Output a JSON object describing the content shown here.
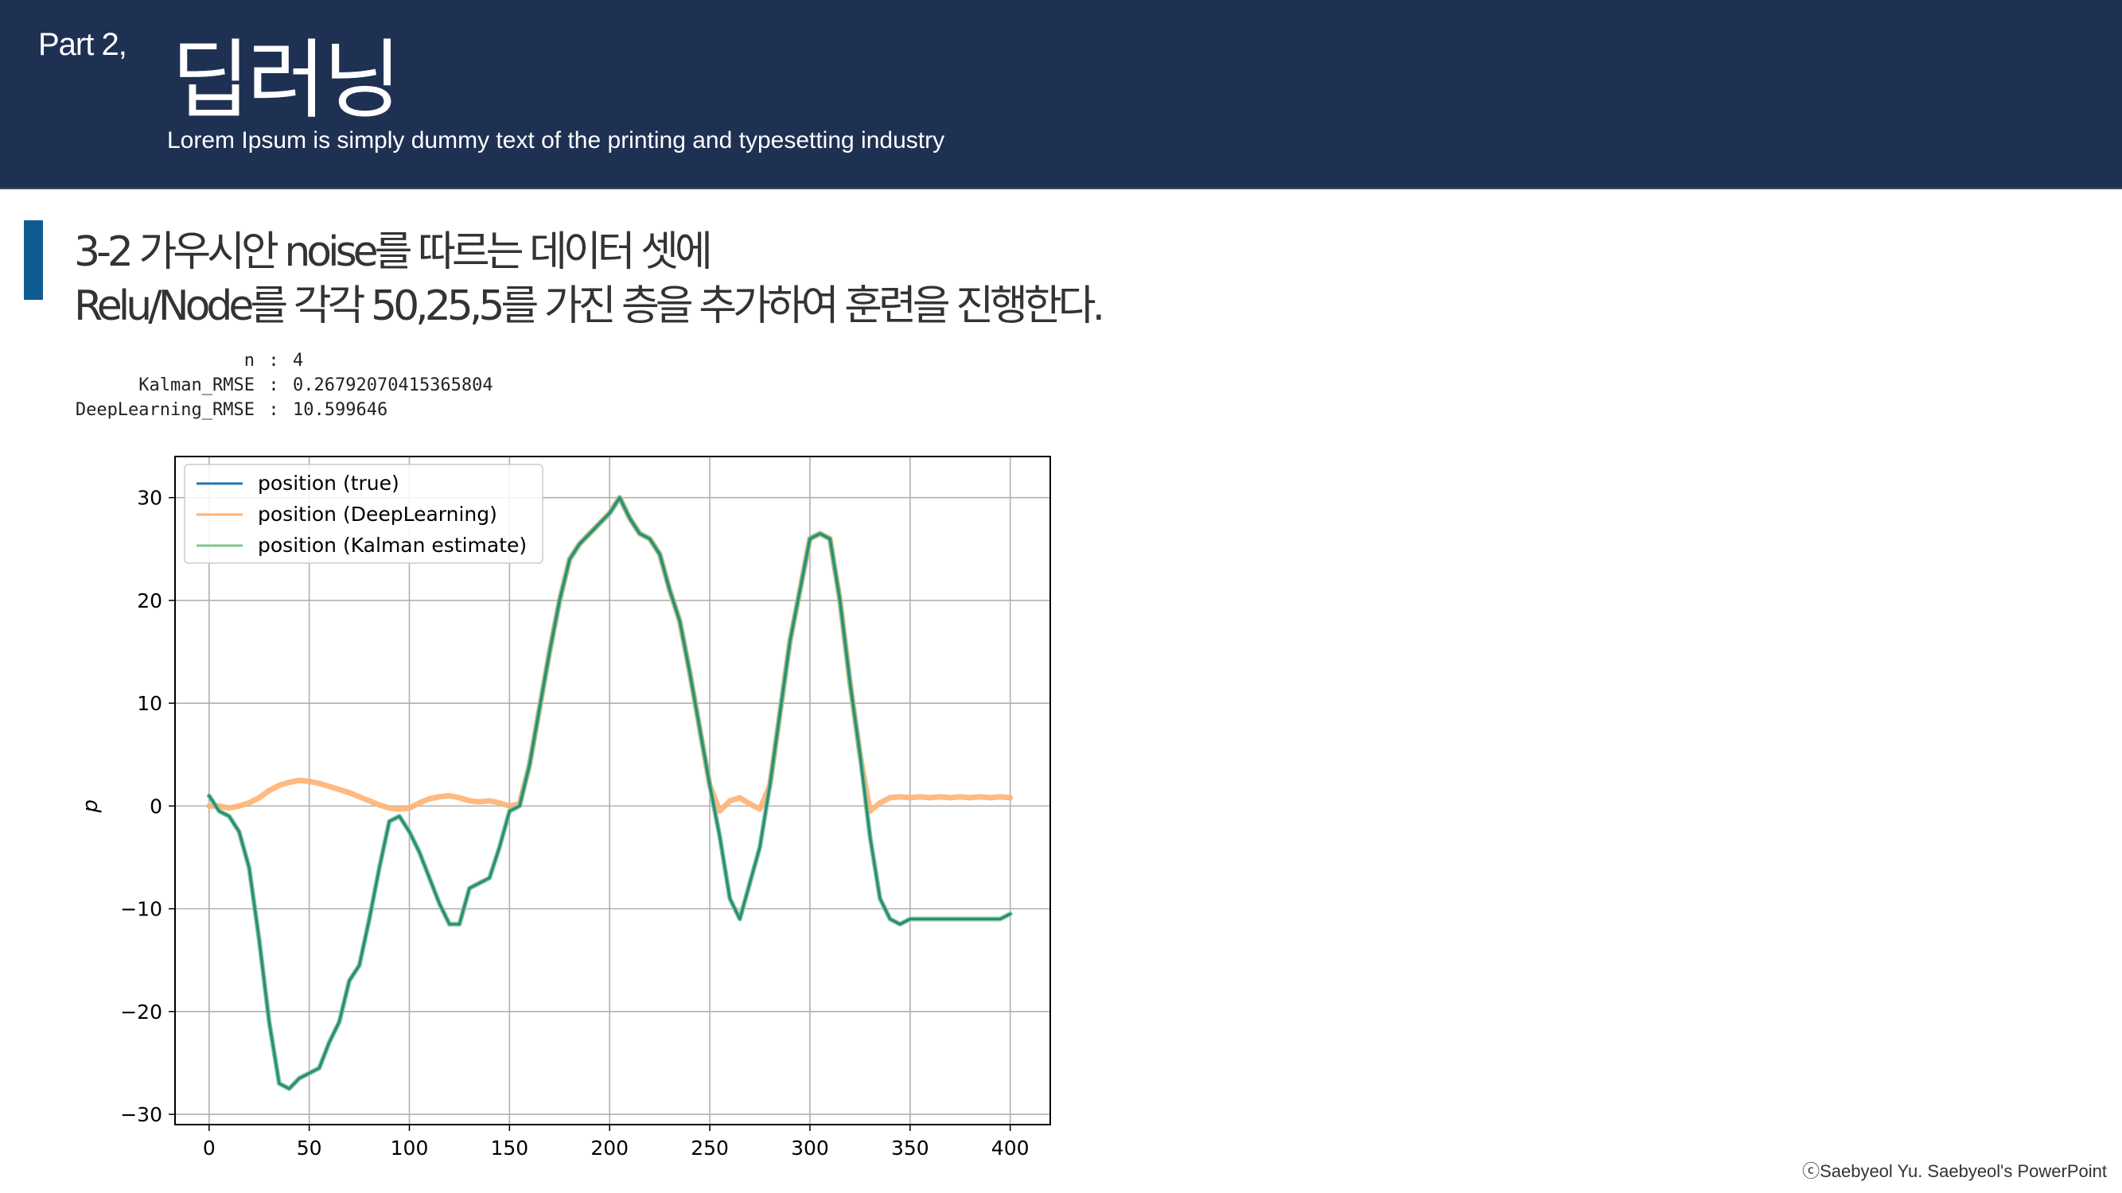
{
  "header": {
    "part_label": "Part 2,",
    "title": "딥러닝",
    "subtitle": "Lorem Ipsum is simply dummy text of the printing and typesetting industry"
  },
  "heading": {
    "line1": "3-2 가우시안 noise를 따르는 데이터 셋에",
    "line2": "Relu/Node를 각각 50,25,5를 가진 층을 추가하여 훈련을 진행한다."
  },
  "console": [
    {
      "label": "n",
      "value": "4"
    },
    {
      "label": "Kalman_RMSE",
      "value": "0.26792070415365804"
    },
    {
      "label": "DeepLearning_RMSE",
      "value": "10.599646"
    }
  ],
  "colors": {
    "header_bg": "#1f3153",
    "accent": "#0f5c93",
    "true": "#1f77b4",
    "deep": "#ffb273",
    "kalman": "#7cc48a",
    "kalman_line": "#2a8c7a"
  },
  "chart_data": {
    "type": "line",
    "title": "",
    "xlabel": "",
    "ylabel": "p",
    "xlim": [
      -17,
      420
    ],
    "ylim": [
      -31,
      34
    ],
    "xticks": [
      0,
      50,
      100,
      150,
      200,
      250,
      300,
      350,
      400
    ],
    "yticks": [
      30,
      20,
      10,
      0,
      -10,
      -20,
      -30
    ],
    "xtick_labels": [
      "0",
      "50",
      "100",
      "150",
      "200",
      "250",
      "300",
      "350",
      "400"
    ],
    "ytick_labels": [
      "30",
      "20",
      "10",
      "0",
      "−10",
      "−20",
      "−30"
    ],
    "grid": true,
    "legend_position": "top-left",
    "series": [
      {
        "name": "position (true)",
        "color": "#1f77b4",
        "x": [
          0,
          5,
          10,
          15,
          20,
          25,
          30,
          35,
          40,
          45,
          50,
          55,
          60,
          65,
          70,
          75,
          80,
          85,
          90,
          95,
          100,
          105,
          110,
          115,
          120,
          125,
          130,
          135,
          140,
          145,
          150,
          155,
          160,
          165,
          170,
          175,
          180,
          185,
          190,
          195,
          200,
          205,
          210,
          215,
          220,
          225,
          230,
          235,
          240,
          245,
          250,
          255,
          260,
          265,
          270,
          275,
          280,
          285,
          290,
          295,
          300,
          305,
          310,
          315,
          320,
          325,
          330,
          335,
          340,
          345,
          350,
          355,
          360,
          365,
          370,
          375,
          380,
          385,
          390,
          395,
          400
        ],
        "y": [
          1,
          -0.5,
          -1,
          -2.5,
          -6,
          -13,
          -21,
          -27,
          -27.5,
          -26.5,
          -26,
          -25.5,
          -23,
          -21,
          -17,
          -15.5,
          -11,
          -6,
          -1.5,
          -1,
          -2.5,
          -4.5,
          -7,
          -9.5,
          -11.5,
          -11.5,
          -8,
          -7.5,
          -7,
          -4,
          -0.5,
          0,
          4,
          9.5,
          15,
          20,
          24,
          25.5,
          26.5,
          27.5,
          28.5,
          30,
          28,
          26.5,
          26,
          24.5,
          21,
          18,
          13,
          7.5,
          2,
          -3,
          -9,
          -11,
          -7.5,
          -4,
          2,
          9,
          16,
          21,
          26,
          26.5,
          26,
          20,
          12,
          5,
          -3,
          -9,
          -11,
          -11.5,
          -11,
          -11,
          -11,
          -11,
          -11,
          -11,
          -11,
          -11,
          -11,
          -11,
          -10.5
        ]
      },
      {
        "name": "position (DeepLearning)",
        "color": "#ffb273",
        "x": [
          0,
          5,
          10,
          15,
          20,
          25,
          30,
          35,
          40,
          45,
          50,
          55,
          60,
          65,
          70,
          75,
          80,
          85,
          90,
          95,
          100,
          105,
          110,
          115,
          120,
          125,
          130,
          135,
          140,
          145,
          150,
          155,
          160,
          165,
          170,
          175,
          180,
          185,
          190,
          195,
          200,
          205,
          210,
          215,
          220,
          225,
          230,
          235,
          240,
          245,
          250,
          255,
          260,
          265,
          270,
          275,
          280,
          285,
          290,
          295,
          300,
          305,
          310,
          315,
          320,
          325,
          330,
          335,
          340,
          345,
          350,
          355,
          360,
          365,
          370,
          375,
          380,
          385,
          390,
          395,
          400
        ],
        "y": [
          0,
          0,
          -0.2,
          0,
          0.3,
          0.8,
          1.5,
          2,
          2.3,
          2.5,
          2.4,
          2.2,
          1.9,
          1.6,
          1.3,
          0.9,
          0.5,
          0.1,
          -0.2,
          -0.3,
          -0.2,
          0.3,
          0.7,
          0.9,
          1,
          0.8,
          0.5,
          0.4,
          0.5,
          0.3,
          0,
          0.2,
          4,
          9.5,
          15,
          20,
          24,
          25.5,
          26.5,
          27.5,
          28.5,
          30,
          28,
          26.5,
          26,
          24.5,
          21,
          18,
          13,
          7.5,
          2,
          -0.5,
          0.5,
          0.8,
          0.2,
          -0.3,
          2,
          9,
          16,
          21,
          26,
          26.5,
          26,
          20,
          12,
          5,
          -0.5,
          0.3,
          0.8,
          0.9,
          0.8,
          0.9,
          0.8,
          0.9,
          0.8,
          0.9,
          0.8,
          0.9,
          0.8,
          0.9,
          0.8
        ]
      },
      {
        "name": "position (Kalman estimate)",
        "color": "#7cc48a",
        "x": [
          0,
          5,
          10,
          15,
          20,
          25,
          30,
          35,
          40,
          45,
          50,
          55,
          60,
          65,
          70,
          75,
          80,
          85,
          90,
          95,
          100,
          105,
          110,
          115,
          120,
          125,
          130,
          135,
          140,
          145,
          150,
          155,
          160,
          165,
          170,
          175,
          180,
          185,
          190,
          195,
          200,
          205,
          210,
          215,
          220,
          225,
          230,
          235,
          240,
          245,
          250,
          255,
          260,
          265,
          270,
          275,
          280,
          285,
          290,
          295,
          300,
          305,
          310,
          315,
          320,
          325,
          330,
          335,
          340,
          345,
          350,
          355,
          360,
          365,
          370,
          375,
          380,
          385,
          390,
          395,
          400
        ],
        "y": [
          1,
          -0.5,
          -1,
          -2.5,
          -6,
          -13,
          -21,
          -27,
          -27.5,
          -26.5,
          -26,
          -25.5,
          -23,
          -21,
          -17,
          -15.5,
          -11,
          -6,
          -1.5,
          -1,
          -2.5,
          -4.5,
          -7,
          -9.5,
          -11.5,
          -11.5,
          -8,
          -7.5,
          -7,
          -4,
          -0.5,
          0,
          4,
          9.5,
          15,
          20,
          24,
          25.5,
          26.5,
          27.5,
          28.5,
          30,
          28,
          26.5,
          26,
          24.5,
          21,
          18,
          13,
          7.5,
          2,
          -3,
          -9,
          -11,
          -7.5,
          -4,
          2,
          9,
          16,
          21,
          26,
          26.5,
          26,
          20,
          12,
          5,
          -3,
          -9,
          -11,
          -11.5,
          -11,
          -11,
          -11,
          -11,
          -11,
          -11,
          -11,
          -11,
          -11,
          -11,
          -10.5
        ]
      }
    ]
  },
  "footer": {
    "copyright": "ⓒSaebyeol Yu. Saebyeol's PowerPoint"
  }
}
